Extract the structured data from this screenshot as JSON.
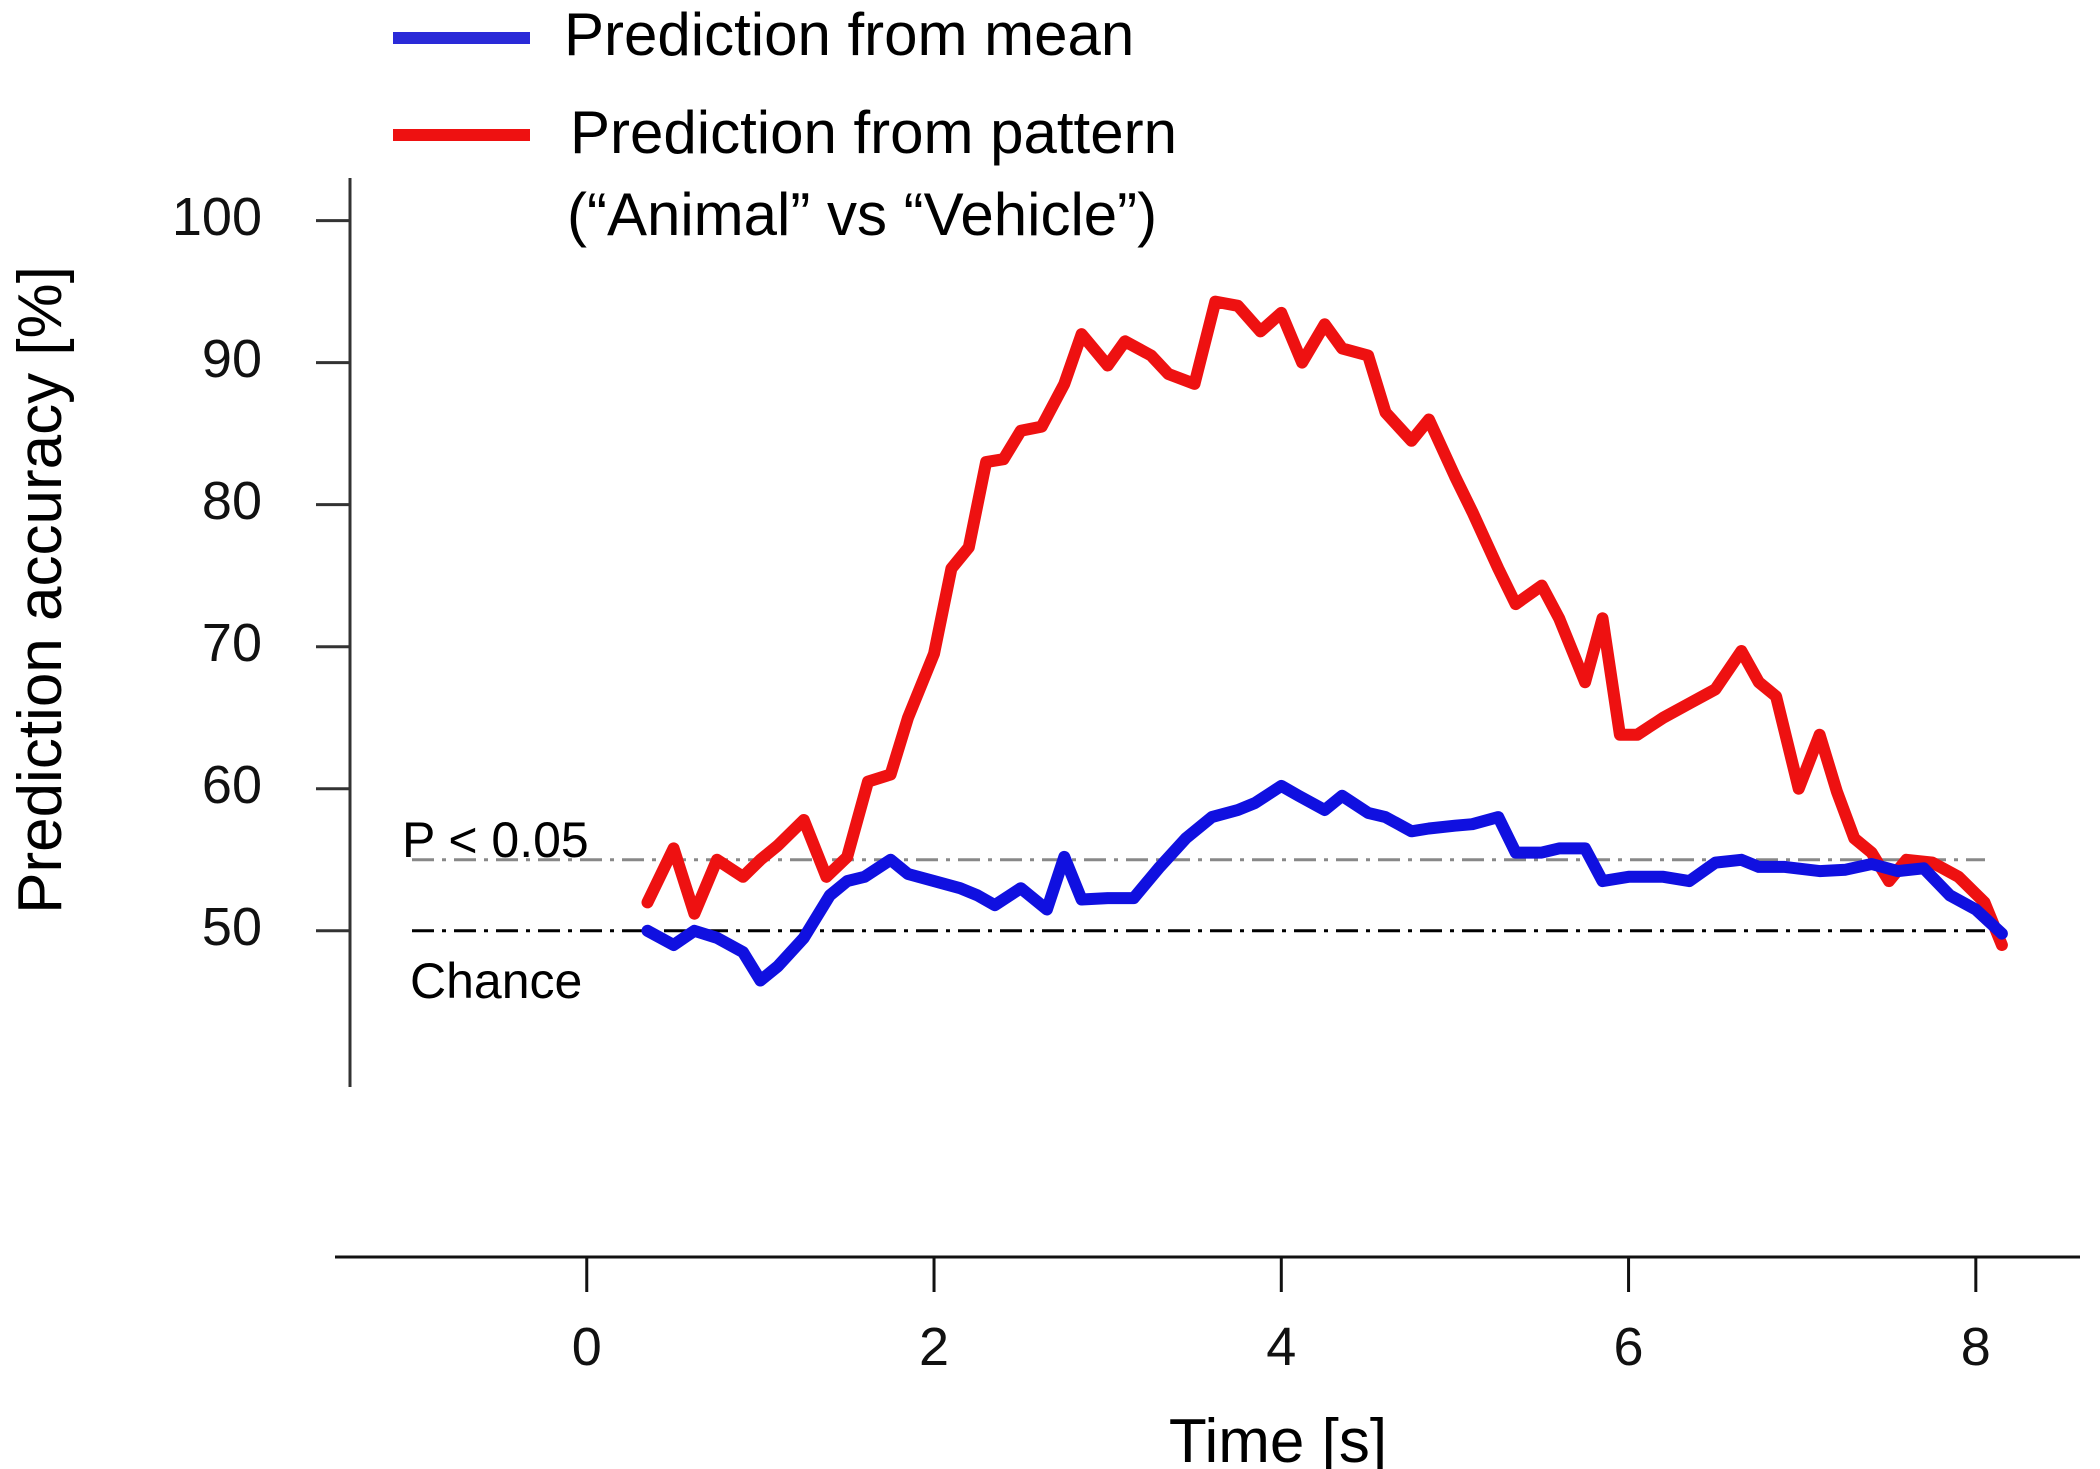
{
  "chart_data": {
    "type": "line",
    "title": "",
    "xlabel": "Time [s]",
    "ylabel": "Prediction accuracy [%]",
    "xlim": [
      -1.45,
      8.6
    ],
    "ylim": [
      39,
      103
    ],
    "x_ticks": [
      0,
      2,
      4,
      6,
      8
    ],
    "y_ticks": [
      50,
      60,
      70,
      80,
      90,
      100
    ],
    "grid": false,
    "legend": {
      "position": "top",
      "entries": [
        {
          "name": "Prediction from mean",
          "color": "#1010e0"
        },
        {
          "name": "Prediction from pattern",
          "name_line2": "(“Animal” vs “Vehicle”)",
          "color": "#ee1111"
        }
      ]
    },
    "reference_lines": [
      {
        "label": "P < 0.05",
        "y": 55,
        "color": "#888888",
        "style": "dash-dot"
      },
      {
        "label": "Chance",
        "y": 50,
        "color": "#000000",
        "style": "dash-dot"
      }
    ],
    "series": [
      {
        "name": "Prediction from mean",
        "color": "#1010e0",
        "x": [
          0.35,
          0.5,
          0.62,
          0.75,
          0.9,
          1.0,
          1.1,
          1.25,
          1.4,
          1.5,
          1.6,
          1.75,
          1.85,
          2.0,
          2.15,
          2.25,
          2.35,
          2.5,
          2.65,
          2.75,
          2.85,
          3.0,
          3.15,
          3.3,
          3.45,
          3.6,
          3.75,
          3.85,
          4.0,
          4.1,
          4.25,
          4.35,
          4.5,
          4.6,
          4.75,
          4.85,
          5.0,
          5.1,
          5.25,
          5.35,
          5.5,
          5.6,
          5.75,
          5.85,
          6.0,
          6.2,
          6.35,
          6.5,
          6.65,
          6.75,
          6.9,
          7.1,
          7.25,
          7.4,
          7.55,
          7.7,
          7.85,
          8.0,
          8.15
        ],
        "values": [
          50,
          49,
          50,
          49.5,
          48.5,
          46.5,
          47.5,
          49.5,
          52.5,
          53.5,
          53.8,
          55,
          54,
          53.5,
          53,
          52.5,
          51.8,
          53,
          51.5,
          55.2,
          52.2,
          52.3,
          52.3,
          54.5,
          56.5,
          58,
          58.5,
          59,
          60.2,
          59.5,
          58.5,
          59.5,
          58.3,
          58,
          57,
          57.2,
          57.4,
          57.5,
          58,
          55.5,
          55.5,
          55.8,
          55.8,
          53.5,
          53.8,
          53.8,
          53.5,
          54.8,
          55,
          54.5,
          54.5,
          54.2,
          54.3,
          54.7,
          54.2,
          54.4,
          52.5,
          51.5,
          49.8
        ]
      },
      {
        "name": "Prediction from pattern",
        "color": "#ee1111",
        "x": [
          0.35,
          0.5,
          0.62,
          0.75,
          0.9,
          1.0,
          1.1,
          1.25,
          1.38,
          1.5,
          1.62,
          1.75,
          1.85,
          2.0,
          2.1,
          2.2,
          2.3,
          2.4,
          2.5,
          2.62,
          2.75,
          2.85,
          3.0,
          3.1,
          3.25,
          3.35,
          3.5,
          3.62,
          3.75,
          3.88,
          4.0,
          4.12,
          4.25,
          4.35,
          4.5,
          4.6,
          4.75,
          4.85,
          5.0,
          5.1,
          5.25,
          5.35,
          5.5,
          5.6,
          5.75,
          5.85,
          5.95,
          6.05,
          6.2,
          6.35,
          6.5,
          6.65,
          6.75,
          6.85,
          6.98,
          7.1,
          7.2,
          7.3,
          7.4,
          7.5,
          7.6,
          7.75,
          7.9,
          8.05,
          8.15
        ],
        "values": [
          52,
          55.8,
          51.2,
          55,
          53.8,
          55,
          56,
          57.8,
          53.8,
          55.2,
          60.5,
          61,
          65,
          69.5,
          75.5,
          77,
          83,
          83.2,
          85.2,
          85.5,
          88.5,
          92,
          89.8,
          91.5,
          90.5,
          89.2,
          88.5,
          94.3,
          94,
          92.2,
          93.5,
          90,
          92.7,
          91,
          90.5,
          86.5,
          84.5,
          86,
          82,
          79.5,
          75.5,
          73,
          74.3,
          72,
          67.5,
          72,
          63.8,
          63.8,
          65,
          66,
          67,
          69.7,
          67.5,
          66.5,
          60,
          63.8,
          59.8,
          56.5,
          55.5,
          53.5,
          55,
          54.8,
          53.8,
          52,
          49
        ]
      }
    ]
  }
}
